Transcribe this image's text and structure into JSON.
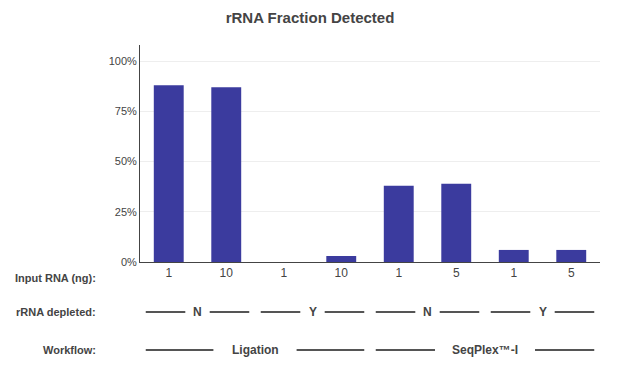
{
  "chart_data": {
    "type": "bar",
    "title": "rRNA Fraction Detected",
    "categories": [
      "1",
      "10",
      "1",
      "10",
      "1",
      "5",
      "1",
      "5"
    ],
    "values": [
      0.88,
      0.87,
      0.0,
      0.03,
      0.38,
      0.39,
      0.06,
      0.06
    ],
    "color": "#3B3B9E",
    "xlabel": "Input RNA (ng):",
    "ylim": [
      0,
      1.08
    ],
    "yticks": [
      {
        "value": 0,
        "label": "0%"
      },
      {
        "value": 0.25,
        "label": "25%"
      },
      {
        "value": 0.5,
        "label": "50%"
      },
      {
        "value": 0.75,
        "label": "75%"
      },
      {
        "value": 1.0,
        "label": "100%"
      }
    ],
    "grid": true,
    "annotations": [
      {
        "text": "rRNA depleted:",
        "groups": [
          {
            "text": "N",
            "span": [
              0,
              1
            ]
          },
          {
            "text": "Y",
            "span": [
              2,
              3
            ]
          },
          {
            "text": "N",
            "span": [
              4,
              5
            ]
          },
          {
            "text": "Y",
            "span": [
              6,
              7
            ]
          }
        ]
      },
      {
        "text": "Workflow:",
        "groups": [
          {
            "text": "Ligation",
            "span": [
              0,
              3
            ]
          },
          {
            "text": "SeqPlex™-I",
            "span": [
              4,
              7
            ]
          }
        ]
      }
    ]
  }
}
